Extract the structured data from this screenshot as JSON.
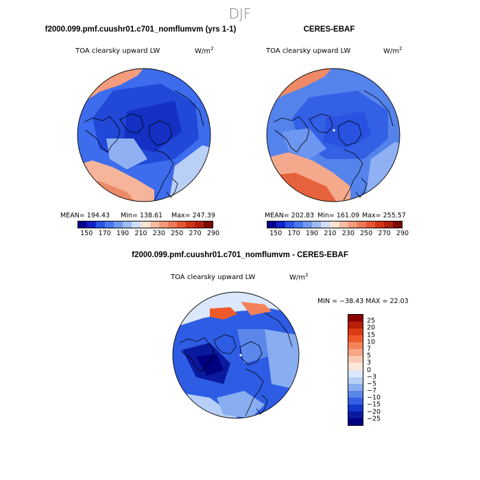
{
  "figure": {
    "title": "DJF"
  },
  "panels": {
    "model": {
      "header": "f2000.099.pmf.cuushr01.c701_nomflumvm (yrs 1-1)",
      "variable": "TOA clearsky upward LW",
      "units": "W/m",
      "units_exp": "2",
      "mean": "MEAN= 194.43",
      "min": "Min= 138.61",
      "max": "Max= 247.39",
      "colorbar_ticks": [
        "150",
        "170",
        "190",
        "210",
        "230",
        "250",
        "270",
        "290"
      ]
    },
    "obs": {
      "header": "CERES-EBAF",
      "variable": "TOA clearsky upward LW",
      "units": "W/m",
      "units_exp": "2",
      "mean": "MEAN= 202.83",
      "min": "Min= 161.09",
      "max": "Max= 255.57",
      "colorbar_ticks": [
        "150",
        "170",
        "190",
        "210",
        "230",
        "250",
        "270",
        "290"
      ]
    },
    "diff": {
      "header": "f2000.099.pmf.cuushr01.c701_nomflumvm - CERES-EBAF",
      "variable": "TOA clearsky upward LW",
      "units": "W/m",
      "units_exp": "2",
      "minmax": "MIN = −38.43 MAX =  22.03",
      "colorbar_ticks": [
        "25",
        "20",
        "15",
        "10",
        "7",
        "5",
        "3",
        "0",
        "−3",
        "−5",
        "−7",
        "−10",
        "−15",
        "−20",
        "−25"
      ]
    }
  },
  "colors": {
    "abs_scale": [
      "#08008c",
      "#1024c8",
      "#2a55e6",
      "#4a78ee",
      "#7099f2",
      "#9dbcf5",
      "#cfdcf7",
      "#fde3d3",
      "#f8bba0",
      "#f29a7c",
      "#ec7a57",
      "#e45534",
      "#d13219",
      "#b0200e",
      "#7a0a02"
    ],
    "diff_scale": [
      "#8b0000",
      "#b81d08",
      "#dc3a14",
      "#f05a28",
      "#f3815a",
      "#f6a585",
      "#f9cbb4",
      "#fde7da",
      "#dbe8fb",
      "#b6cff6",
      "#88adf0",
      "#5b87ea",
      "#3461e4",
      "#1438c8",
      "#0a1a9e",
      "#000080"
    ]
  }
}
